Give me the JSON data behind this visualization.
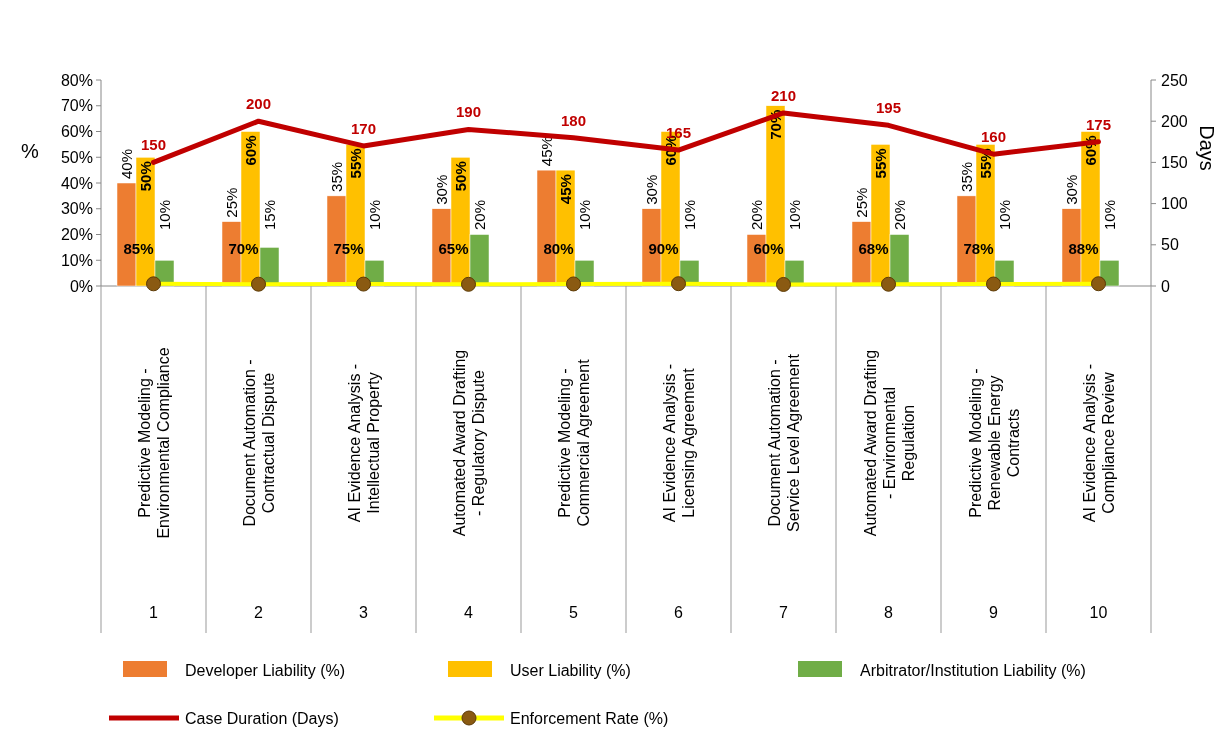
{
  "chart_data": {
    "type": "bar",
    "ylabel": "%",
    "y2label": "Days",
    "categories": [
      "Predictive Modeling - Environmental Compliance",
      "Document Automation - Contractual Dispute",
      "AI Evidence Analysis - Intellectual Property",
      "Automated Award Drafting - Regulatory Dispute",
      "Predictive Modeling - Commercial Agreement",
      "AI Evidence Analysis - Licensing Agreement",
      "Document Automation - Service Level Agreement",
      "Automated Award Drafting - Environmental Regulation",
      "Predictive Modeling - Renewable Energy Contracts",
      "AI Evidence Analysis - Compliance Review"
    ],
    "annotations": [
      "1",
      "2",
      "3",
      "4",
      "5",
      "6",
      "7",
      "8",
      "9",
      "10"
    ],
    "series": [
      {
        "name": "Developer Liability (%)",
        "color": "#ed7d31",
        "values": [
          40,
          25,
          35,
          30,
          45,
          30,
          20,
          25,
          35,
          30
        ],
        "value_labels": [
          "40%",
          "25%",
          "35%",
          "30%",
          "45%",
          "30%",
          "20%",
          "25%",
          "35%",
          "30%"
        ]
      },
      {
        "name": "User Liability (%)",
        "color": "#ffc000",
        "values": [
          50,
          60,
          55,
          50,
          45,
          60,
          70,
          55,
          55,
          60
        ],
        "value_labels": [
          "50%",
          "60%",
          "55%",
          "50%",
          "45%",
          "60%",
          "70%",
          "55%",
          "55%",
          "60%"
        ]
      },
      {
        "name": "Arbitrator/Institution Liability (%)",
        "color": "#70ad47",
        "values": [
          10,
          15,
          10,
          20,
          10,
          10,
          10,
          20,
          10,
          10
        ],
        "value_labels": [
          "10%",
          "15%",
          "10%",
          "20%",
          "10%",
          "10%",
          "10%",
          "20%",
          "10%",
          "10%"
        ]
      },
      {
        "name": "Case Duration (Days)",
        "type": "line",
        "axis": "y2",
        "color": "#c00000",
        "values": [
          150,
          200,
          170,
          190,
          180,
          165,
          210,
          195,
          160,
          175
        ],
        "value_labels": [
          "150",
          "200",
          "170",
          "190",
          "180",
          "165",
          "210",
          "195",
          "160",
          "175"
        ]
      },
      {
        "name": "Enforcement Rate (%)",
        "type": "line",
        "color": "#ffff00",
        "marker": "circle",
        "values": [
          0.85,
          0.7,
          0.75,
          0.65,
          0.8,
          0.9,
          0.6,
          0.68,
          0.78,
          0.88
        ],
        "value_labels": [
          "85%",
          "70%",
          "75%",
          "65%",
          "80%",
          "90%",
          "60%",
          "68%",
          "78%",
          "88%"
        ]
      }
    ],
    "ylim": [
      0,
      80
    ],
    "yticks": [
      {
        "value": 0,
        "label": "0%"
      },
      {
        "value": 10,
        "label": "10%"
      },
      {
        "value": 20,
        "label": "20%"
      },
      {
        "value": 30,
        "label": "30%"
      },
      {
        "value": 40,
        "label": "40%"
      },
      {
        "value": 50,
        "label": "50%"
      },
      {
        "value": 60,
        "label": "60%"
      },
      {
        "value": 70,
        "label": "70%"
      },
      {
        "value": 80,
        "label": "80%"
      }
    ],
    "y2lim": [
      0,
      250
    ],
    "y2ticks": [
      0,
      50,
      100,
      150,
      200,
      250
    ],
    "legend": "bottom"
  }
}
